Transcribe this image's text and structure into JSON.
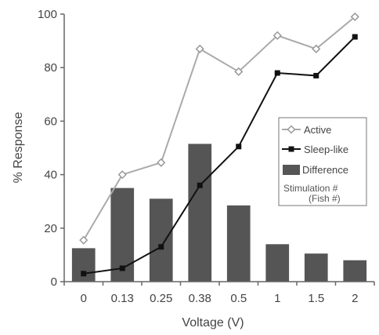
{
  "chart_data": {
    "type": "bar",
    "xlabel": "Voltage (V)",
    "ylabel": "% Response",
    "ylim": [
      0,
      100
    ],
    "yticks": [
      "0",
      "20",
      "40",
      "60",
      "80",
      "100"
    ],
    "categories": [
      "0",
      "0.13",
      "0.25",
      "0.38",
      "0.5",
      "1",
      "1.5",
      "2"
    ],
    "bars": {
      "name": "Difference",
      "values": [
        12.5,
        35,
        31,
        51.5,
        28.5,
        14,
        10.5,
        8
      ],
      "color": "#555555"
    },
    "series": [
      {
        "name": "Active",
        "type": "line",
        "marker": "open-diamond",
        "color": "#aaaaaa",
        "values": [
          15.5,
          40,
          44.5,
          87,
          78.5,
          92,
          87,
          99
        ]
      },
      {
        "name": "Sleep-like",
        "type": "line",
        "marker": "filled-square",
        "color": "#111111",
        "values": [
          3,
          5,
          13,
          36,
          50.5,
          78,
          77,
          91.5
        ]
      }
    ],
    "legend": {
      "position": "right",
      "entries": [
        "Active",
        "Sleep-like",
        "Difference"
      ],
      "note_line1": "Stimulation #",
      "note_line2": "(Fish #)"
    },
    "grid": false
  }
}
